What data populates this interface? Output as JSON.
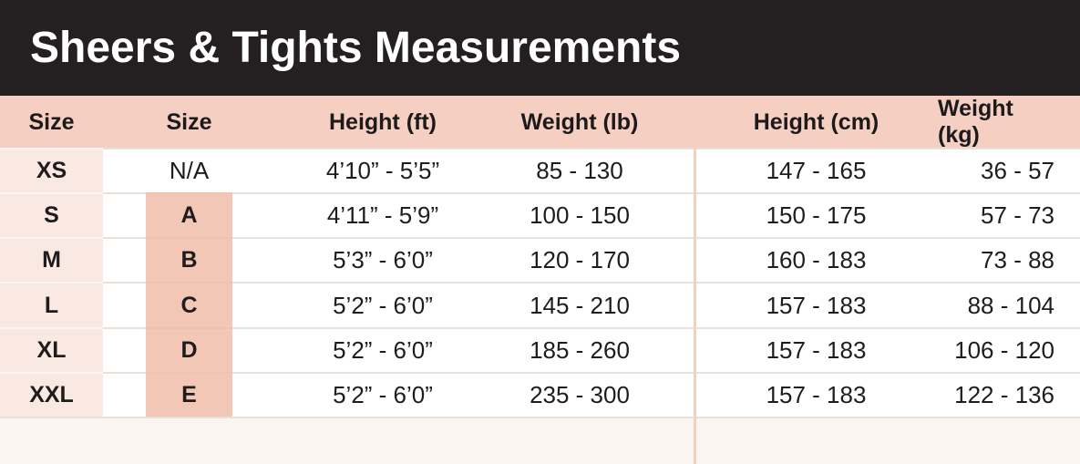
{
  "title": "Sheers & Tights Measurements",
  "header": {
    "col_size": "Size",
    "col_size_letter": "Size",
    "col_height_ft": "Height (ft)",
    "col_weight_lb": "Weight (lb)",
    "col_height_cm": "Height (cm)",
    "col_weight_kg": "Weight (kg)"
  },
  "rows": [
    {
      "size": "XS",
      "letter": "N/A",
      "letter_highlighted": false,
      "height_ft": "4’10” - 5’5”",
      "weight_lb": "85 - 130",
      "height_cm": "147 - 165",
      "weight_kg": "36 - 57"
    },
    {
      "size": "S",
      "letter": "A",
      "letter_highlighted": true,
      "height_ft": "4’11” - 5’9”",
      "weight_lb": "100 - 150",
      "height_cm": "150 - 175",
      "weight_kg": "57 - 73"
    },
    {
      "size": "M",
      "letter": "B",
      "letter_highlighted": true,
      "height_ft": "5’3” - 6’0”",
      "weight_lb": "120 - 170",
      "height_cm": "160 - 183",
      "weight_kg": "73 - 88"
    },
    {
      "size": "L",
      "letter": "C",
      "letter_highlighted": true,
      "height_ft": "5’2” - 6’0”",
      "weight_lb": "145 - 210",
      "height_cm": "157 - 183",
      "weight_kg": "88 - 104"
    },
    {
      "size": "XL",
      "letter": "D",
      "letter_highlighted": true,
      "height_ft": "5’2” - 6’0”",
      "weight_lb": "185 - 260",
      "height_cm": "157 - 183",
      "weight_kg": "106 - 120"
    },
    {
      "size": "XXL",
      "letter": "E",
      "letter_highlighted": true,
      "height_ft": "5’2” - 6’0”",
      "weight_lb": "235 - 300",
      "height_cm": "157 - 183",
      "weight_kg": "122 - 136"
    }
  ],
  "chart_data": {
    "type": "table",
    "title": "Sheers & Tights Measurements",
    "columns": [
      "Size",
      "Size",
      "Height (ft)",
      "Weight (lb)",
      "Height (cm)",
      "Weight (kg)"
    ],
    "rows": [
      [
        "XS",
        "N/A",
        "4’10” - 5’5”",
        "85 - 130",
        "147 - 165",
        "36 - 57"
      ],
      [
        "S",
        "A",
        "4’11” - 5’9”",
        "100 - 150",
        "150 - 175",
        "57 - 73"
      ],
      [
        "M",
        "B",
        "5’3” - 6’0”",
        "120 - 170",
        "160 - 183",
        "73 - 88"
      ],
      [
        "L",
        "C",
        "5’2” - 6’0”",
        "145 - 210",
        "157 - 183",
        "88 - 104"
      ],
      [
        "XL",
        "D",
        "5’2” - 6’0”",
        "185 - 260",
        "157 - 183",
        "106 - 120"
      ],
      [
        "XXL",
        "E",
        "5’2” - 6’0”",
        "235 - 300",
        "157 - 183",
        "122 - 136"
      ]
    ]
  },
  "colors": {
    "title_bar_bg": "#241f21",
    "title_text": "#ffffff",
    "header_row_bg": "#f5cfc1",
    "size_column_bg": "#fae9e2",
    "letter_column_bg": "#f3c7b5",
    "divider": "#f5cfc2",
    "page_bg": "#fbf5f1",
    "separator": "#e7e1dc",
    "text": "#1f1c1d"
  }
}
